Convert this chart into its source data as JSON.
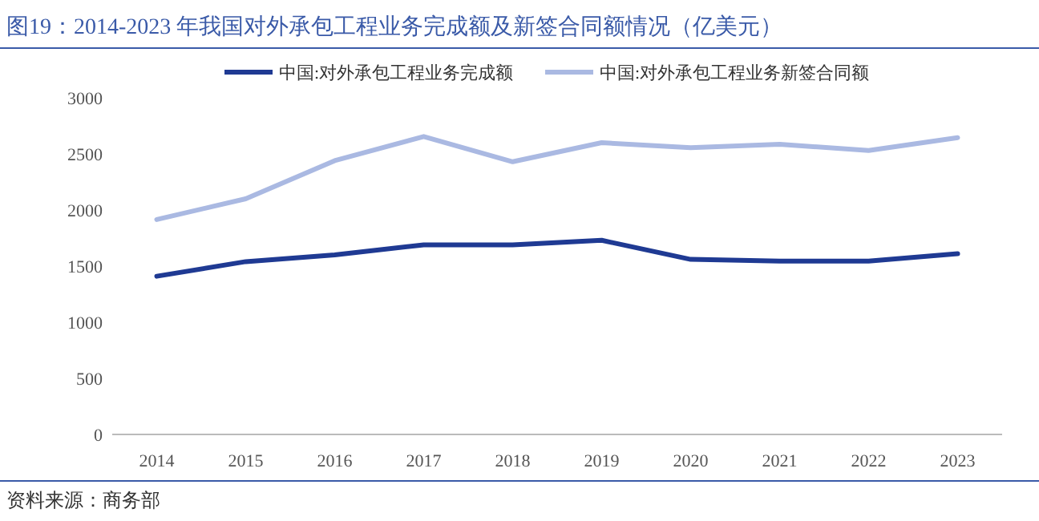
{
  "chart_data": {
    "type": "line",
    "title": "图19：2014-2023 年我国对外承包工程业务完成额及新签合同额情况（亿美元）",
    "annotations": [
      "资料来源：商务部"
    ],
    "categories": [
      "2014",
      "2015",
      "2016",
      "2017",
      "2018",
      "2019",
      "2020",
      "2021",
      "2022",
      "2023"
    ],
    "series": [
      {
        "name": "中国:对外承包工程业务完成额",
        "color": "#1f3a93",
        "values": [
          1410,
          1540,
          1600,
          1690,
          1690,
          1730,
          1560,
          1545,
          1545,
          1610
        ]
      },
      {
        "name": "中国:对外承包工程业务新签合同额",
        "color": "#aab9e2",
        "values": [
          1915,
          2100,
          2440,
          2655,
          2430,
          2600,
          2555,
          2585,
          2530,
          2645
        ]
      }
    ],
    "ylim": [
      0,
      3000
    ],
    "yticks": [
      0,
      500,
      1000,
      1500,
      2000,
      2500,
      3000
    ],
    "legend": "top",
    "grid": false
  }
}
